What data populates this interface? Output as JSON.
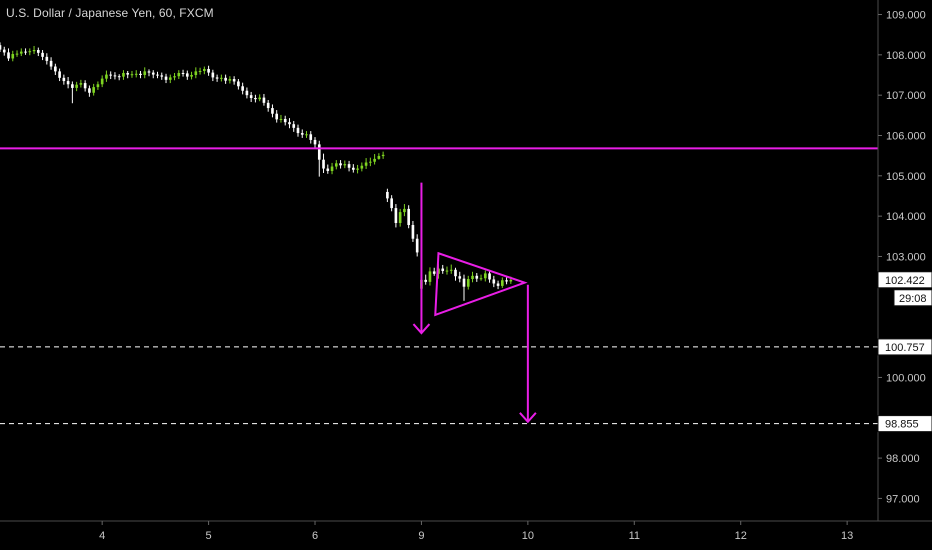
{
  "chart_data": {
    "type": "candlestick",
    "title": "U.S. Dollar / Japanese Yen, 60, FXCM",
    "ylim": [
      96.44,
      109.36
    ],
    "xlim": [
      3.04,
      13.29
    ],
    "y_ticks": [
      "109.000",
      "108.000",
      "107.000",
      "106.000",
      "105.000",
      "104.000",
      "103.000",
      "100.000",
      "98.000",
      "97.000"
    ],
    "x_ticks": [
      "4",
      "5",
      "6",
      "9",
      "10",
      "11",
      "12",
      "13"
    ],
    "x_tick_positions": [
      4,
      5,
      6,
      9,
      10,
      11,
      12,
      13
    ],
    "x_labels_pos": [
      4.0,
      5.0,
      6.0,
      7.0,
      8.0,
      9.0,
      10.0,
      11.0
    ],
    "price_badges": [
      {
        "label": "102.422",
        "value": 102.422
      },
      {
        "label": "100.757",
        "value": 100.757
      },
      {
        "label": "98.855",
        "value": 98.855
      }
    ],
    "countdown": "29:08",
    "horizontal_line": {
      "value": 105.68,
      "color": "#e91ee6"
    },
    "dashed_lines": [
      100.757,
      98.855
    ],
    "triangle": {
      "apex": [
        9.97,
        102.35
      ],
      "upper": [
        9.16,
        103.08
      ],
      "lower": [
        9.13,
        101.55
      ]
    },
    "arrows": [
      {
        "x": 8.77,
        "from": 104.83,
        "to": 101.1
      },
      {
        "x": 10.0,
        "from": 102.3,
        "to": 98.9
      }
    ],
    "series": {
      "x": [
        3.0,
        3.04,
        3.08,
        3.12,
        3.16,
        3.2,
        3.24,
        3.28,
        3.32,
        3.36,
        3.4,
        3.44,
        3.48,
        3.52,
        3.56,
        3.6,
        3.64,
        3.68,
        3.72,
        3.76,
        3.8,
        3.84,
        3.88,
        3.92,
        3.96,
        4.0,
        4.04,
        4.08,
        4.12,
        4.16,
        4.2,
        4.24,
        4.28,
        4.32,
        4.36,
        4.4,
        4.44,
        4.48,
        4.52,
        4.56,
        4.6,
        4.64,
        4.68,
        4.72,
        4.76,
        4.8,
        4.84,
        4.88,
        4.92,
        4.96,
        5.0,
        5.04,
        5.08,
        5.12,
        5.16,
        5.2,
        5.24,
        5.28,
        5.32,
        5.36,
        5.4,
        5.44,
        5.48,
        5.52,
        5.56,
        5.6,
        5.64,
        5.68,
        5.72,
        5.76,
        5.8,
        5.84,
        5.88,
        5.92,
        5.96,
        6.0,
        6.04,
        6.08,
        6.12,
        6.16,
        6.2,
        6.24,
        6.28,
        6.32,
        6.36,
        6.4,
        6.44,
        6.48,
        6.52,
        6.56,
        6.6,
        6.64,
        6.68,
        6.72,
        6.76,
        6.8,
        6.84,
        6.88,
        6.92,
        6.96,
        9.0,
        9.04,
        9.08,
        9.12,
        9.16,
        9.2,
        9.24,
        9.28,
        9.32,
        9.36,
        9.4,
        9.44,
        9.48,
        9.52,
        9.56,
        9.6,
        9.64,
        9.68,
        9.72,
        9.76,
        9.8,
        9.84
      ],
      "open": [
        108.31,
        108.24,
        108.13,
        108.06,
        107.91,
        108.02,
        108.03,
        108.08,
        108.07,
        108.09,
        108.12,
        108.05,
        107.95,
        107.85,
        107.71,
        107.59,
        107.43,
        107.35,
        107.27,
        107.18,
        107.26,
        107.3,
        107.17,
        107.06,
        107.2,
        107.27,
        107.41,
        107.51,
        107.49,
        107.47,
        107.46,
        107.55,
        107.51,
        107.52,
        107.53,
        107.5,
        107.59,
        107.56,
        107.51,
        107.49,
        107.46,
        107.38,
        107.44,
        107.47,
        107.55,
        107.54,
        107.46,
        107.5,
        107.59,
        107.6,
        107.65,
        107.56,
        107.44,
        107.41,
        107.43,
        107.36,
        107.4,
        107.34,
        107.22,
        107.11,
        107.0,
        106.93,
        106.9,
        106.94,
        106.81,
        106.68,
        106.54,
        106.4,
        106.41,
        106.33,
        106.28,
        106.19,
        106.06,
        106.02,
        106.03,
        105.89,
        105.78,
        105.4,
        105.18,
        105.12,
        105.23,
        105.31,
        105.26,
        105.29,
        105.2,
        105.15,
        105.18,
        105.25,
        105.33,
        105.35,
        105.42,
        105.49,
        104.6,
        104.44,
        104.2,
        103.83,
        104.1,
        104.18,
        103.78,
        103.44,
        102.2,
        102.42,
        102.37,
        102.63,
        102.57,
        102.7,
        102.64,
        102.65,
        102.67,
        102.51,
        102.45,
        102.25,
        102.44,
        102.52,
        102.45,
        102.46,
        102.58,
        102.43,
        102.33,
        102.27,
        102.41,
        102.38
      ],
      "close": [
        108.24,
        108.13,
        108.06,
        107.91,
        108.02,
        108.03,
        108.08,
        108.07,
        108.09,
        108.12,
        108.05,
        107.95,
        107.85,
        107.71,
        107.59,
        107.43,
        107.35,
        107.27,
        107.18,
        107.26,
        107.3,
        107.17,
        107.06,
        107.2,
        107.27,
        107.41,
        107.51,
        107.49,
        107.47,
        107.46,
        107.55,
        107.51,
        107.52,
        107.53,
        107.5,
        107.59,
        107.56,
        107.51,
        107.49,
        107.46,
        107.38,
        107.44,
        107.47,
        107.55,
        107.54,
        107.46,
        107.5,
        107.59,
        107.6,
        107.65,
        107.56,
        107.44,
        107.41,
        107.43,
        107.36,
        107.4,
        107.34,
        107.22,
        107.11,
        107.0,
        106.93,
        106.9,
        106.94,
        106.81,
        106.68,
        106.54,
        106.4,
        106.41,
        106.33,
        106.28,
        106.19,
        106.06,
        106.02,
        106.03,
        105.89,
        105.78,
        105.4,
        105.18,
        105.12,
        105.23,
        105.31,
        105.26,
        105.29,
        105.2,
        105.15,
        105.18,
        105.25,
        105.33,
        105.35,
        105.42,
        105.49,
        105.52,
        104.44,
        104.2,
        103.83,
        104.1,
        104.18,
        103.78,
        103.44,
        103.1,
        102.42,
        102.37,
        102.63,
        102.57,
        102.7,
        102.64,
        102.65,
        102.67,
        102.51,
        102.45,
        102.25,
        102.44,
        102.52,
        102.45,
        102.46,
        102.58,
        102.43,
        102.33,
        102.27,
        102.41,
        102.38,
        102.42
      ],
      "high": [
        108.36,
        108.31,
        108.2,
        108.16,
        108.1,
        108.11,
        108.16,
        108.16,
        108.16,
        108.22,
        108.18,
        108.12,
        108.04,
        107.94,
        107.78,
        107.66,
        107.51,
        107.45,
        107.34,
        107.33,
        107.38,
        107.37,
        107.24,
        107.28,
        107.34,
        107.49,
        107.61,
        107.59,
        107.57,
        107.52,
        107.62,
        107.6,
        107.6,
        107.62,
        107.6,
        107.69,
        107.64,
        107.62,
        107.58,
        107.56,
        107.53,
        107.51,
        107.55,
        107.62,
        107.63,
        107.61,
        107.58,
        107.69,
        107.68,
        107.71,
        107.73,
        107.63,
        107.51,
        107.51,
        107.51,
        107.47,
        107.47,
        107.4,
        107.31,
        107.19,
        107.08,
        107.01,
        107.02,
        107.03,
        106.88,
        106.77,
        106.63,
        106.51,
        106.49,
        106.43,
        106.36,
        106.27,
        106.15,
        106.11,
        106.11,
        105.96,
        105.87,
        105.55,
        105.28,
        105.32,
        105.39,
        105.39,
        105.38,
        105.37,
        105.29,
        105.27,
        105.33,
        105.44,
        105.45,
        105.54,
        105.56,
        105.6,
        104.68,
        104.52,
        104.3,
        104.18,
        104.3,
        104.27,
        103.88,
        103.55,
        103.1,
        102.55,
        102.73,
        102.72,
        102.82,
        102.79,
        102.75,
        102.8,
        102.72,
        102.62,
        102.55,
        102.52,
        102.62,
        102.59,
        102.55,
        102.65,
        102.65,
        102.52,
        102.4,
        102.48,
        102.48,
        102.5
      ],
      "low": [
        108.17,
        108.07,
        107.98,
        107.85,
        107.84,
        107.95,
        107.97,
        108.0,
        107.99,
        108.02,
        107.97,
        107.87,
        107.76,
        107.63,
        107.5,
        107.35,
        107.26,
        107.17,
        106.8,
        107.1,
        107.19,
        107.09,
        106.96,
        106.99,
        107.13,
        107.2,
        107.33,
        107.4,
        107.39,
        107.37,
        107.38,
        107.42,
        107.43,
        107.44,
        107.42,
        107.42,
        107.47,
        107.42,
        107.42,
        107.38,
        107.3,
        107.3,
        107.37,
        107.4,
        107.46,
        107.38,
        107.39,
        107.42,
        107.51,
        107.52,
        107.48,
        107.35,
        107.33,
        107.34,
        107.28,
        107.29,
        107.26,
        107.14,
        107.02,
        106.92,
        106.83,
        106.82,
        106.85,
        106.74,
        106.59,
        106.45,
        106.32,
        106.32,
        106.25,
        106.18,
        106.09,
        105.97,
        105.94,
        105.94,
        105.8,
        105.7,
        104.98,
        105.07,
        105.05,
        105.04,
        105.16,
        105.18,
        105.19,
        105.11,
        105.08,
        105.06,
        105.11,
        105.17,
        105.24,
        105.28,
        105.4,
        105.42,
        104.35,
        104.12,
        103.72,
        103.74,
        104.0,
        103.7,
        103.36,
        103.0,
        101.55,
        102.3,
        102.28,
        102.52,
        102.45,
        102.57,
        102.55,
        102.57,
        102.4,
        102.36,
        101.9,
        102.18,
        102.36,
        102.37,
        102.4,
        102.38,
        102.35,
        102.24,
        102.19,
        102.22,
        102.31,
        102.32
      ]
    }
  }
}
